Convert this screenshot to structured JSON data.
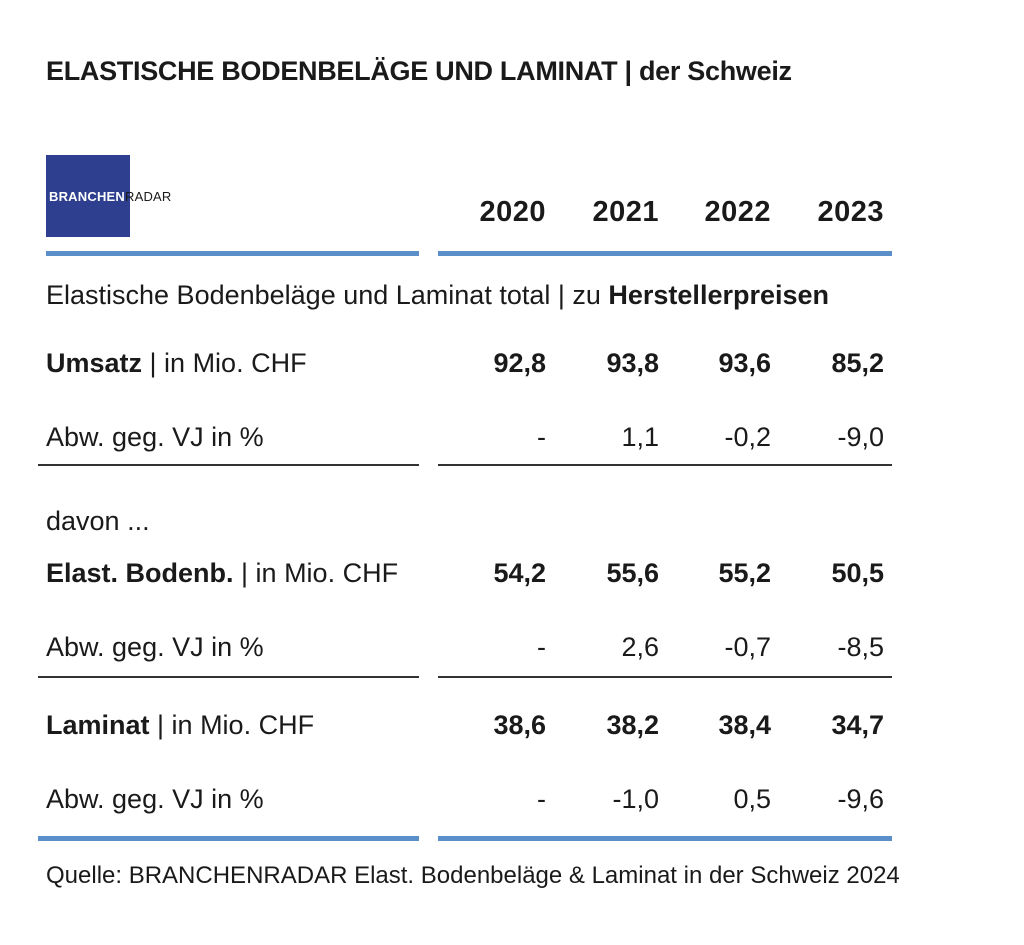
{
  "title_bold": "ELASTISCHE BODENBELÄGE UND LAMINAT",
  "title_sep": " | ",
  "title_rest": "der Schweiz",
  "logo": {
    "part1": "BRANCHEN",
    "part2": "RADAR"
  },
  "colors": {
    "accent_blue": "#5b8fc9",
    "logo_bg": "#2e3f8f",
    "text": "#1a1a1a"
  },
  "section_header": {
    "prefix": "Elastische Bodenbeläge und Laminat total | zu ",
    "bold": "Herstellerpreisen"
  },
  "chart_data": {
    "type": "table",
    "columns": [
      "2020",
      "2021",
      "2022",
      "2023"
    ],
    "groups": [
      {
        "rows": [
          {
            "label_bold": "Umsatz",
            "label_rest": " | in Mio. CHF",
            "values": [
              "92,8",
              "93,8",
              "93,6",
              "85,2"
            ]
          },
          {
            "label": "Abw. geg. VJ in %",
            "values": [
              "-",
              "1,1",
              "-0,2",
              "-9,0"
            ]
          }
        ]
      },
      {
        "intro": "davon ...",
        "rows": [
          {
            "label_bold": "Elast. Bodenb.",
            "label_rest": " | in Mio. CHF",
            "values": [
              "54,2",
              "55,6",
              "55,2",
              "50,5"
            ]
          },
          {
            "label": "Abw. geg. VJ in %",
            "values": [
              "-",
              "2,6",
              "-0,7",
              "-8,5"
            ]
          }
        ]
      },
      {
        "rows": [
          {
            "label_bold": "Laminat",
            "label_rest": " | in Mio. CHF",
            "values": [
              "38,6",
              "38,2",
              "38,4",
              "34,7"
            ]
          },
          {
            "label": "Abw. geg. VJ in %",
            "values": [
              "-",
              "-1,0",
              "0,5",
              "-9,6"
            ]
          }
        ]
      }
    ]
  },
  "source": "Quelle: BRANCHENRADAR Elast. Bodenbeläge & Laminat in der Schweiz 2024"
}
